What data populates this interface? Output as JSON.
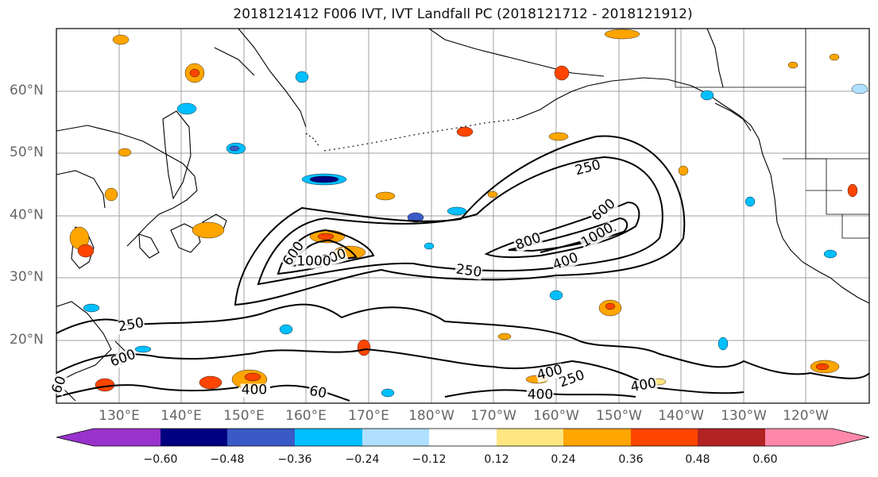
{
  "title": "2018121412 F006 IVT, IVT Landfall PC (2018121712 - 2018121912)",
  "lat_labels": [
    "60°N",
    "50°N",
    "40°N",
    "30°N",
    "20°N"
  ],
  "lon_labels": [
    "130°E",
    "140°E",
    "150°E",
    "160°E",
    "170°E",
    "180°W",
    "170°W",
    "160°W",
    "150°W",
    "140°W",
    "130°W",
    "120°W"
  ],
  "contour_labels": [
    "250",
    "250",
    "250",
    "250",
    "400",
    "400",
    "400",
    "400",
    "400",
    "600",
    "600",
    "600",
    "800",
    "800",
    "1000",
    "1000",
    "60",
    "60"
  ],
  "colorbar": {
    "colors": [
      "#9932CC",
      "#000080",
      "#3A5BC7",
      "#00BFFF",
      "#B0E0FF",
      "#FFFFFF",
      "#FFE680",
      "#FFA500",
      "#FF4500",
      "#B22222",
      "#FF88AA"
    ],
    "tick_labels": [
      "−0.60",
      "−0.48",
      "−0.36",
      "−0.24",
      "−0.12",
      "0.12",
      "0.24",
      "0.36",
      "0.48",
      "0.60"
    ]
  }
}
